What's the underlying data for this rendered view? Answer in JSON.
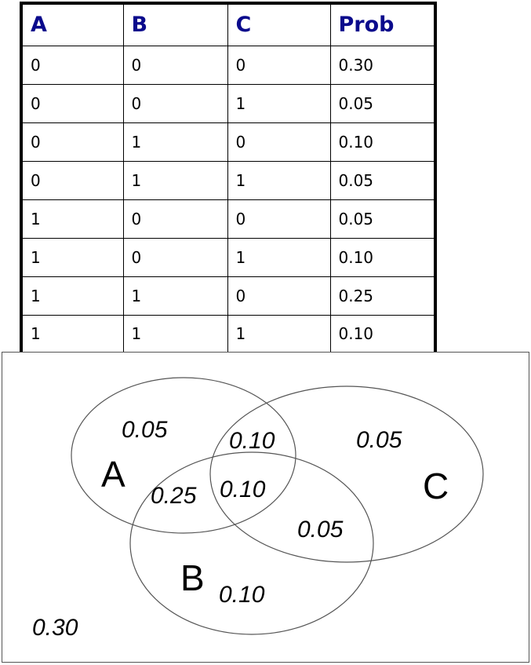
{
  "table": {
    "headers": [
      "A",
      "B",
      "C",
      "Prob"
    ],
    "rows": [
      [
        "0",
        "0",
        "0",
        "0.30"
      ],
      [
        "0",
        "0",
        "1",
        "0.05"
      ],
      [
        "0",
        "1",
        "0",
        "0.10"
      ],
      [
        "0",
        "1",
        "1",
        "0.05"
      ],
      [
        "1",
        "0",
        "0",
        "0.05"
      ],
      [
        "1",
        "0",
        "1",
        "0.10"
      ],
      [
        "1",
        "1",
        "0",
        "0.25"
      ],
      [
        "1",
        "1",
        "1",
        "0.10"
      ]
    ]
  },
  "venn": {
    "sets": {
      "a": "A",
      "b": "B",
      "c": "C"
    },
    "regions": {
      "a_only": "0.05",
      "a_c": "0.10",
      "c_only": "0.05",
      "a_b": "0.25",
      "a_b_c": "0.10",
      "b_c": "0.05",
      "b_only": "0.10",
      "none": "0.30"
    },
    "colors": {
      "outline": "#555555",
      "header_text": "#0a0a8c"
    }
  }
}
